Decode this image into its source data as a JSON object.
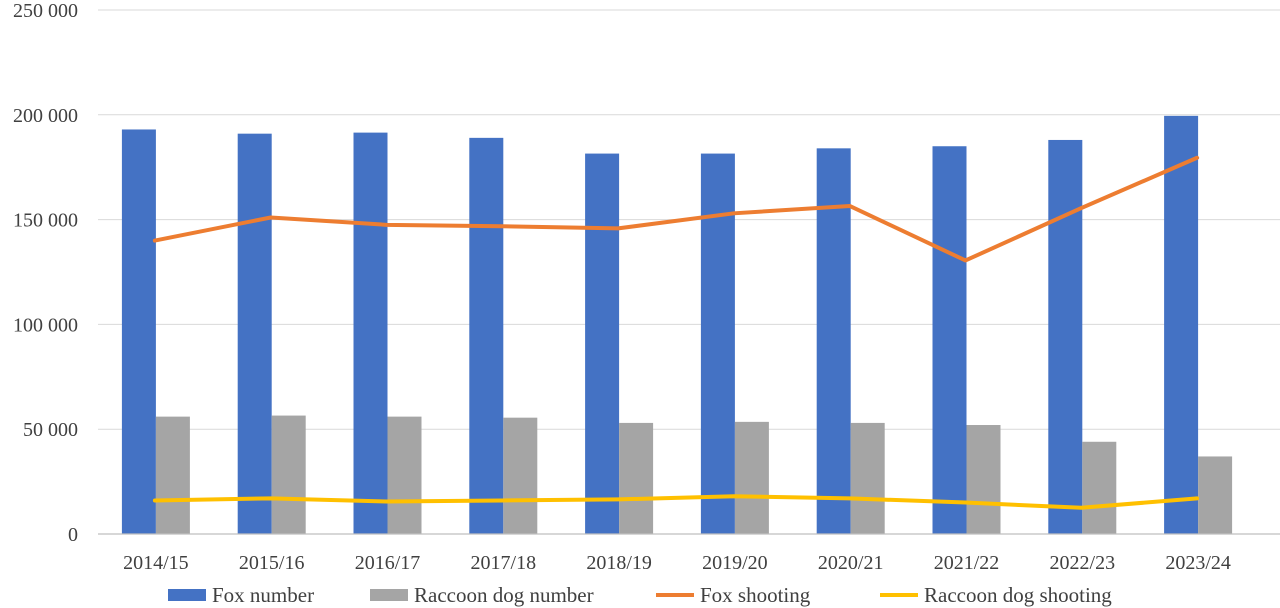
{
  "chart_data": {
    "type": "bar",
    "categories": [
      "2014/15",
      "2015/16",
      "2016/17",
      "2017/18",
      "2018/19",
      "2019/20",
      "2020/21",
      "2021/22",
      "2022/23",
      "2023/24"
    ],
    "series": [
      {
        "name": "Fox number",
        "kind": "bar",
        "color": "#4472c4",
        "values": [
          193000,
          191000,
          191500,
          189000,
          181500,
          181500,
          184000,
          185000,
          188000,
          199500
        ]
      },
      {
        "name": "Raccoon dog number",
        "kind": "bar",
        "color": "#a5a5a5",
        "values": [
          56000,
          56500,
          56000,
          55500,
          53000,
          53500,
          53000,
          52000,
          44000,
          37000
        ]
      },
      {
        "name": "Fox shooting",
        "kind": "line",
        "color": "#ed7d31",
        "values": [
          140000,
          151000,
          147500,
          146800,
          145800,
          153000,
          156500,
          130500,
          155500,
          179500
        ]
      },
      {
        "name": "Raccoon dog shooting",
        "kind": "line",
        "color": "#ffc000",
        "values": [
          16000,
          17000,
          15500,
          16000,
          16500,
          18000,
          17000,
          15000,
          12500,
          17000
        ]
      }
    ],
    "yticks": [
      "0",
      "50 000",
      "100 000",
      "150 000",
      "200 000",
      "250 000"
    ],
    "ylim": [
      0,
      250000
    ],
    "grid": true,
    "legend_position": "bottom"
  }
}
